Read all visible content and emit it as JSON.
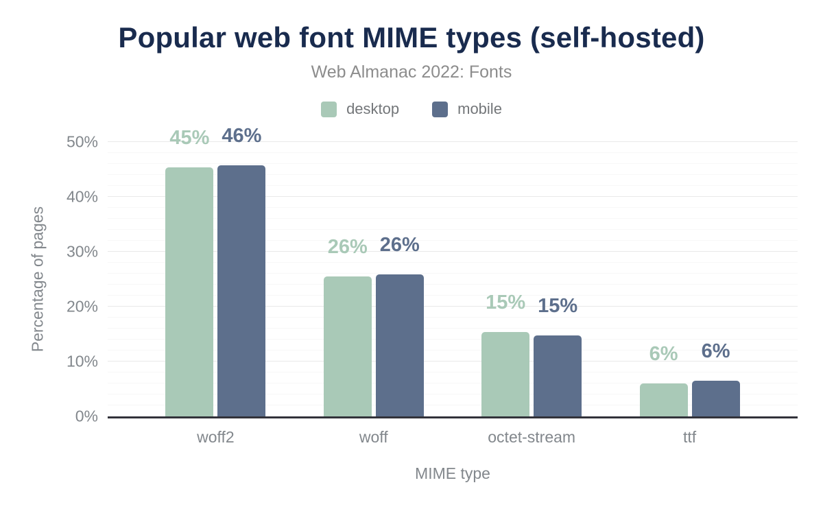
{
  "chart_data": {
    "type": "bar",
    "title": "Popular web font MIME types (self-hosted)",
    "subtitle": "Web Almanac 2022: Fonts",
    "xlabel": "MIME type",
    "ylabel": "Percentage of pages",
    "categories": [
      "woff2",
      "woff",
      "octet-stream",
      "ttf"
    ],
    "series": [
      {
        "name": "desktop",
        "color": "#a9c9b7",
        "values": [
          45.4,
          25.5,
          15.4,
          6.0
        ],
        "labels": [
          "45%",
          "26%",
          "15%",
          "6%"
        ]
      },
      {
        "name": "mobile",
        "color": "#5d6f8c",
        "values": [
          45.7,
          25.9,
          14.7,
          6.5
        ],
        "labels": [
          "46%",
          "26%",
          "15%",
          "6%"
        ]
      }
    ],
    "y_axis": {
      "min": 0,
      "max": 50,
      "major_tick_interval": 10,
      "minor_tick_interval": 2,
      "tick_labels": [
        "0%",
        "10%",
        "20%",
        "30%",
        "40%",
        "50%"
      ]
    },
    "legend_position": "top-center",
    "grid": true
  },
  "colors": {
    "title_text": "#192b4e",
    "subtitle_text": "#8c8c8c",
    "legend_text": "#737679",
    "axis_text": "#82878c",
    "axis_line": "#32323a",
    "major_gridline": "#e9e9e9",
    "minor_gridline": "#f7f7f7",
    "background": "#ffffff"
  }
}
